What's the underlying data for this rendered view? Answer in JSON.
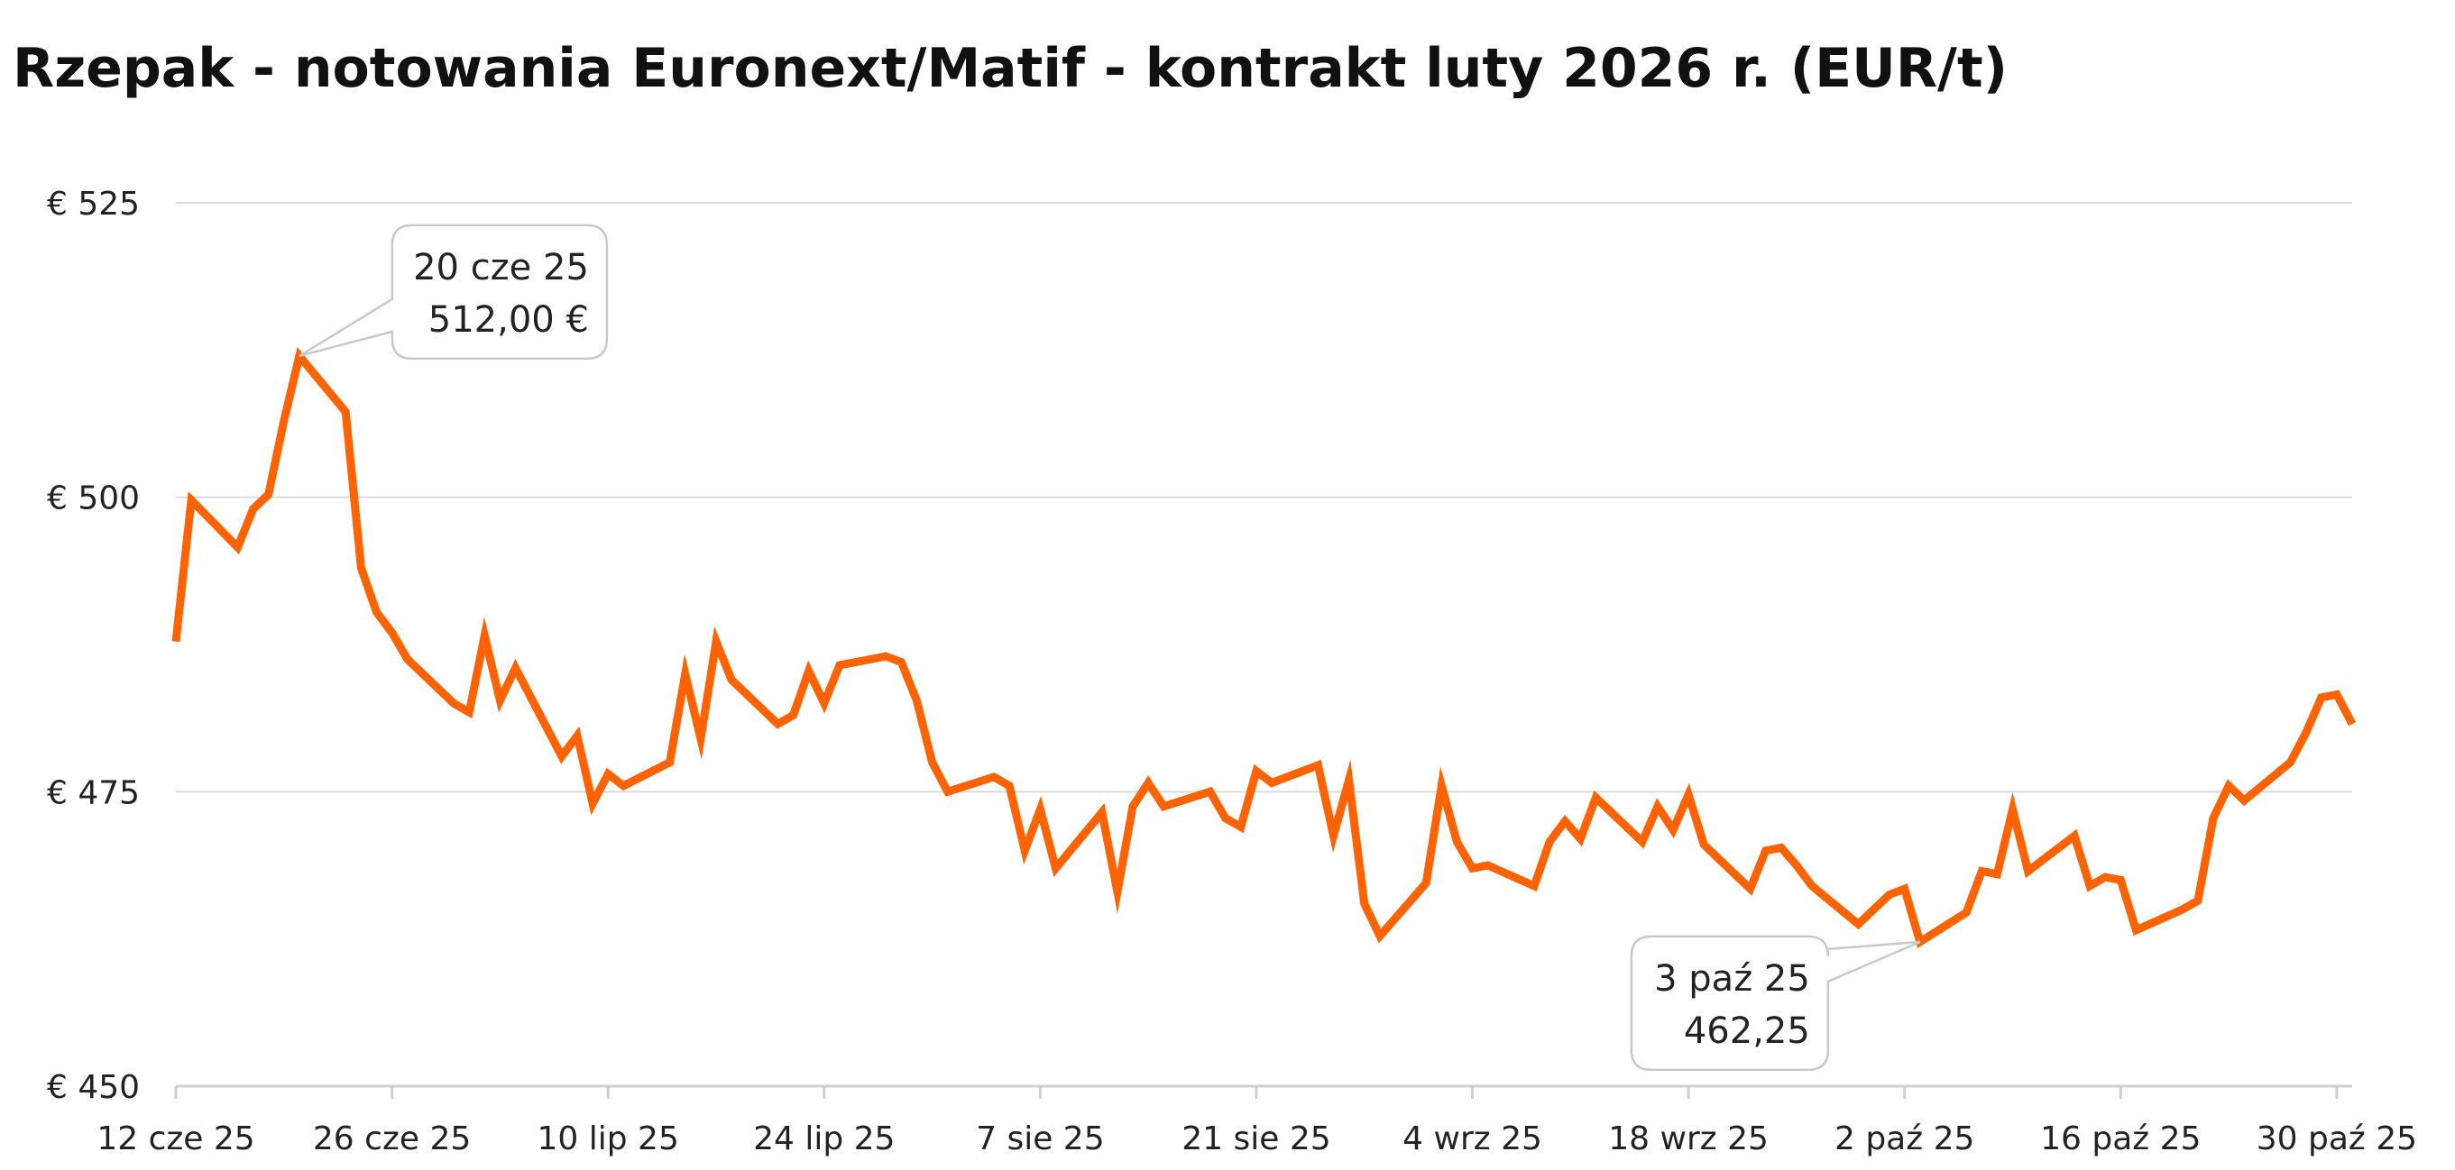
{
  "chart_data": {
    "type": "line",
    "title": "Rzepak - notowania Euronext/Matif - kontrakt luty 2026 r. (EUR/t)",
    "xlabel": "",
    "ylabel": "",
    "ylim": [
      450,
      525
    ],
    "y_ticks": [
      {
        "value": 525,
        "label": "€ 525"
      },
      {
        "value": 500,
        "label": "€ 500"
      },
      {
        "value": 475,
        "label": "€ 475"
      },
      {
        "value": 450,
        "label": "€ 450"
      }
    ],
    "x_range": [
      "2025-06-12",
      "2025-10-31"
    ],
    "x_ticks": [
      {
        "date": "2025-06-12",
        "label": "12 cze 25"
      },
      {
        "date": "2025-06-26",
        "label": "26 cze 25"
      },
      {
        "date": "2025-07-10",
        "label": "10 lip 25"
      },
      {
        "date": "2025-07-24",
        "label": "24 lip 25"
      },
      {
        "date": "2025-08-07",
        "label": "7 sie 25"
      },
      {
        "date": "2025-08-21",
        "label": "21 sie 25"
      },
      {
        "date": "2025-09-04",
        "label": "4 wrz 25"
      },
      {
        "date": "2025-09-18",
        "label": "18 wrz 25"
      },
      {
        "date": "2025-10-02",
        "label": "2 paź 25"
      },
      {
        "date": "2025-10-16",
        "label": "16 paź 25"
      },
      {
        "date": "2025-10-30",
        "label": "30 paź 25"
      }
    ],
    "grid": true,
    "series_color": "#ff6200",
    "series": [
      {
        "name": "",
        "points": [
          [
            "2025-06-12",
            487.75
          ],
          [
            "2025-06-13",
            499.75
          ],
          [
            "2025-06-16",
            495.75
          ],
          [
            "2025-06-17",
            499.0
          ],
          [
            "2025-06-18",
            500.25
          ],
          [
            "2025-06-19",
            506.5
          ],
          [
            "2025-06-20",
            512.0
          ],
          [
            "2025-06-23",
            507.25
          ],
          [
            "2025-06-24",
            494.0
          ],
          [
            "2025-06-25",
            490.25
          ],
          [
            "2025-06-26",
            488.5
          ],
          [
            "2025-06-27",
            486.25
          ],
          [
            "2025-06-30",
            482.5
          ],
          [
            "2025-07-01",
            481.75
          ],
          [
            "2025-07-02",
            488.25
          ],
          [
            "2025-07-03",
            482.75
          ],
          [
            "2025-07-04",
            485.5
          ],
          [
            "2025-07-07",
            478.0
          ],
          [
            "2025-07-08",
            479.75
          ],
          [
            "2025-07-09",
            474.0
          ],
          [
            "2025-07-10",
            476.5
          ],
          [
            "2025-07-11",
            475.5
          ],
          [
            "2025-07-14",
            477.5
          ],
          [
            "2025-07-15",
            485.0
          ],
          [
            "2025-07-16",
            479.5
          ],
          [
            "2025-07-17",
            487.75
          ],
          [
            "2025-07-18",
            484.5
          ],
          [
            "2025-07-21",
            480.75
          ],
          [
            "2025-07-22",
            481.5
          ],
          [
            "2025-07-23",
            485.25
          ],
          [
            "2025-07-24",
            482.5
          ],
          [
            "2025-07-25",
            485.75
          ],
          [
            "2025-07-28",
            486.5
          ],
          [
            "2025-07-29",
            486.0
          ],
          [
            "2025-07-30",
            482.75
          ],
          [
            "2025-07-31",
            477.5
          ],
          [
            "2025-08-01",
            475.0
          ],
          [
            "2025-08-04",
            476.25
          ],
          [
            "2025-08-05",
            475.5
          ],
          [
            "2025-08-06",
            470.0
          ],
          [
            "2025-08-07",
            473.5
          ],
          [
            "2025-08-08",
            468.5
          ],
          [
            "2025-08-11",
            473.25
          ],
          [
            "2025-08-12",
            466.5
          ],
          [
            "2025-08-13",
            473.75
          ],
          [
            "2025-08-14",
            475.75
          ],
          [
            "2025-08-15",
            473.75
          ],
          [
            "2025-08-18",
            475.0
          ],
          [
            "2025-08-19",
            472.75
          ],
          [
            "2025-08-20",
            472.0
          ],
          [
            "2025-08-21",
            476.75
          ],
          [
            "2025-08-22",
            475.75
          ],
          [
            "2025-08-25",
            477.25
          ],
          [
            "2025-08-26",
            471.25
          ],
          [
            "2025-08-27",
            476.0
          ],
          [
            "2025-08-28",
            465.5
          ],
          [
            "2025-08-29",
            462.75
          ],
          [
            "2025-09-01",
            467.25
          ],
          [
            "2025-09-02",
            475.5
          ],
          [
            "2025-09-03",
            470.75
          ],
          [
            "2025-09-04",
            468.5
          ],
          [
            "2025-09-05",
            468.75
          ],
          [
            "2025-09-08",
            467.0
          ],
          [
            "2025-09-09",
            470.75
          ],
          [
            "2025-09-10",
            472.5
          ],
          [
            "2025-09-11",
            471.0
          ],
          [
            "2025-09-12",
            474.5
          ],
          [
            "2025-09-15",
            470.75
          ],
          [
            "2025-09-16",
            473.75
          ],
          [
            "2025-09-17",
            471.75
          ],
          [
            "2025-09-18",
            474.75
          ],
          [
            "2025-09-19",
            470.5
          ],
          [
            "2025-09-22",
            466.75
          ],
          [
            "2025-09-23",
            470.0
          ],
          [
            "2025-09-24",
            470.25
          ],
          [
            "2025-09-25",
            468.75
          ],
          [
            "2025-09-26",
            467.0
          ],
          [
            "2025-09-29",
            463.75
          ],
          [
            "2025-09-30",
            465.0
          ],
          [
            "2025-10-01",
            466.25
          ],
          [
            "2025-10-02",
            466.75
          ],
          [
            "2025-10-03",
            462.25
          ],
          [
            "2025-10-06",
            464.75
          ],
          [
            "2025-10-07",
            468.25
          ],
          [
            "2025-10-08",
            468.0
          ],
          [
            "2025-10-09",
            473.5
          ],
          [
            "2025-10-10",
            468.25
          ],
          [
            "2025-10-13",
            471.25
          ],
          [
            "2025-10-14",
            467.0
          ],
          [
            "2025-10-15",
            467.75
          ],
          [
            "2025-10-16",
            467.5
          ],
          [
            "2025-10-17",
            463.25
          ],
          [
            "2025-10-20",
            465.0
          ],
          [
            "2025-10-21",
            465.75
          ],
          [
            "2025-10-22",
            472.75
          ],
          [
            "2025-10-23",
            475.5
          ],
          [
            "2025-10-24",
            474.25
          ],
          [
            "2025-10-27",
            477.5
          ],
          [
            "2025-10-28",
            480.0
          ],
          [
            "2025-10-29",
            483.0
          ],
          [
            "2025-10-30",
            483.25
          ],
          [
            "2025-10-31",
            480.75
          ]
        ]
      }
    ],
    "annotations": [
      {
        "date": "2025-06-20",
        "value": 512.0,
        "line1": "20 cze 25",
        "line2": "512,00 €",
        "placement": "above-right"
      },
      {
        "date": "2025-10-03",
        "value": 462.25,
        "line1": "3 paź 25",
        "line2": "462,25",
        "placement": "below-left"
      }
    ]
  }
}
